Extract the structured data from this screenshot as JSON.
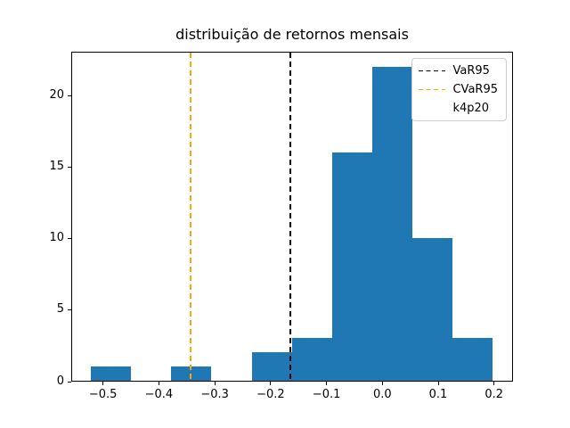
{
  "title": "distribuição de retornos mensais",
  "colors": {
    "bar": "#1f77b4",
    "var_line": "#000000",
    "cvar_line": "#ffa500",
    "spine": "#000000",
    "legend_border": "#cccccc",
    "background": "#ffffff"
  },
  "legend": {
    "items": [
      {
        "label": "VaR95",
        "handle_color": "#000000",
        "dashed": true
      },
      {
        "label": "CVaR95",
        "handle_color": "#ffa500",
        "dashed": true
      },
      {
        "label": "k4p20",
        "handle_color": null,
        "dashed": false
      }
    ]
  },
  "chart_data": {
    "type": "bar",
    "subtype": "histogram",
    "title": "distribuição de retornos mensais",
    "xlabel": "",
    "ylabel": "",
    "bin_edges": [
      -0.5236,
      -0.4516,
      -0.3796,
      -0.3076,
      -0.2356,
      -0.1636,
      -0.0916,
      -0.0196,
      0.0524,
      0.1244,
      0.1964
    ],
    "counts": [
      1,
      0,
      1,
      0,
      2,
      3,
      16,
      22,
      10,
      3
    ],
    "vlines": [
      {
        "label": "VaR95",
        "x": -0.166,
        "color": "#000000",
        "style": "dashed"
      },
      {
        "label": "CVaR95",
        "x": -0.345,
        "color": "#ffa500",
        "style": "dashed"
      }
    ],
    "xlim": [
      -0.557,
      0.234
    ],
    "ylim": [
      0,
      23.1
    ],
    "xticks": {
      "values": [
        -0.5,
        -0.4,
        -0.3,
        -0.2,
        -0.1,
        0.0,
        0.1,
        0.2
      ],
      "labels": [
        "−0.5",
        "−0.4",
        "−0.3",
        "−0.2",
        "−0.1",
        "0.0",
        "0.1",
        "0.2"
      ]
    },
    "yticks": {
      "values": [
        0,
        5,
        10,
        15,
        20
      ],
      "labels": [
        "0",
        "5",
        "10",
        "15",
        "20"
      ]
    },
    "legend_entries": [
      "VaR95",
      "CVaR95",
      "k4p20"
    ],
    "legend_position": "upper right",
    "grid": false
  }
}
